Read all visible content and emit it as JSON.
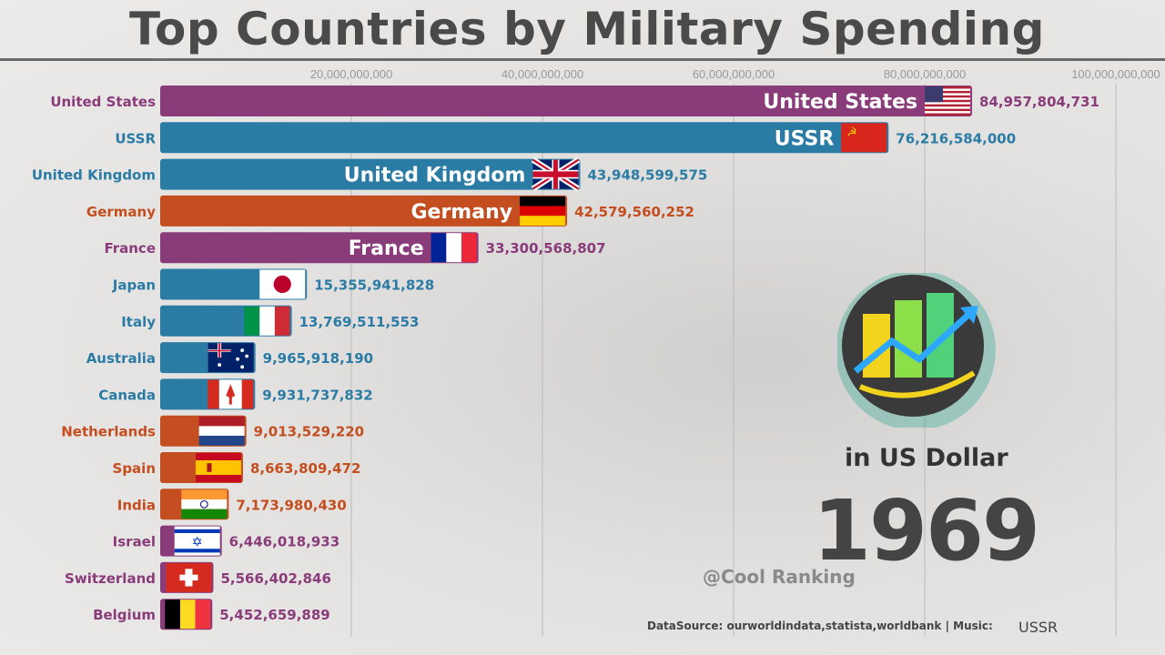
{
  "header": {
    "title": "Top Countries by Military Spending"
  },
  "chart_data": {
    "type": "bar",
    "orientation": "horizontal",
    "title": "Top Countries by Military Spending",
    "xlim": [
      0,
      100000000000
    ],
    "xticks": [
      20000000000,
      40000000000,
      60000000000,
      80000000000,
      100000000000
    ],
    "xtick_labels": [
      "20,000,000,000",
      "40,000,000,000",
      "60,000,000,000",
      "80,000,000,000",
      "100,000,000,000"
    ],
    "grid": true,
    "categories": [
      "United States",
      "USSR",
      "United Kingdom",
      "Germany",
      "France",
      "Japan",
      "Italy",
      "Australia",
      "Canada",
      "Netherlands",
      "Spain",
      "India",
      "Israel",
      "Switzerland",
      "Belgium"
    ],
    "values": [
      84957804731,
      76216584000,
      43948599575,
      42579560252,
      33300568807,
      15355941828,
      13769511553,
      9965918190,
      9931737832,
      9013529220,
      8663809472,
      7173980430,
      6446018933,
      5566402846,
      5452659889
    ],
    "value_labels": [
      "84,957,804,731",
      "76,216,584,000",
      "43,948,599,575",
      "42,579,560,252",
      "33,300,568,807",
      "15,355,941,828",
      "13,769,511,553",
      "9,965,918,190",
      "9,931,737,832",
      "9,013,529,220",
      "8,663,809,472",
      "7,173,980,430",
      "6,446,018,933",
      "5,566,402,846",
      "5,452,659,889"
    ],
    "bar_colors": [
      "#8a3c7a",
      "#2a7ca5",
      "#2a7ca5",
      "#c44e1f",
      "#8a3c7a",
      "#2a7ca5",
      "#2a7ca5",
      "#2a7ca5",
      "#2a7ca5",
      "#c44e1f",
      "#c44e1f",
      "#c44e1f",
      "#8a3c7a",
      "#8a3c7a",
      "#8a3c7a"
    ],
    "flags": [
      "us",
      "ussr",
      "uk",
      "de",
      "fr",
      "jp",
      "it",
      "au",
      "ca",
      "nl",
      "es",
      "in",
      "il",
      "ch",
      "be"
    ],
    "inner_label_count": 5
  },
  "overlay": {
    "unit": "in US Dollar",
    "year": "1969",
    "watermark": "@Cool Ranking",
    "source": "DataSource: ourworldindata,statista,worldbank | Music:",
    "music": "USSR"
  },
  "colors": {
    "purple": "#8a3c7a",
    "blue": "#2a7ca5",
    "orange": "#c44e1f"
  }
}
